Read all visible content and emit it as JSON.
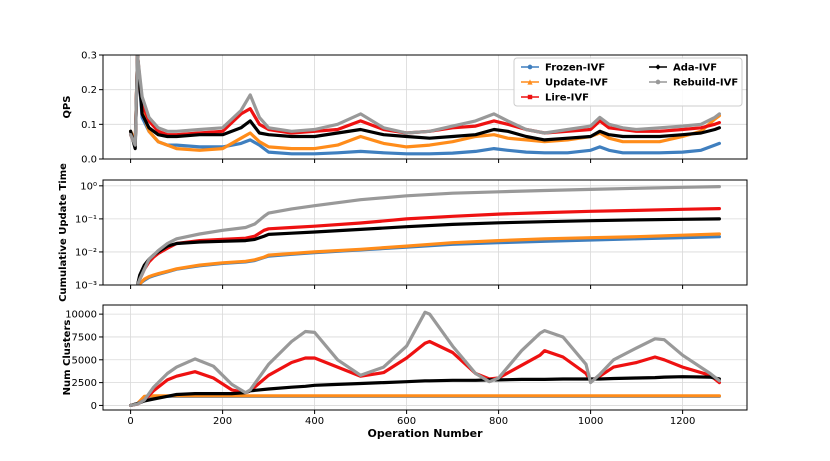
{
  "chart_data": [
    {
      "type": "line",
      "ylabel": "QPS",
      "ylim": [
        0,
        0.3
      ],
      "yticks": [
        0.0,
        0.1,
        0.2,
        0.3
      ],
      "ytick_labels": [
        "0.0",
        "0.1",
        "0.2",
        "0.3"
      ],
      "grid": true,
      "legend_position": "top-right",
      "x": [
        0,
        10,
        15,
        25,
        40,
        60,
        80,
        100,
        150,
        200,
        240,
        260,
        280,
        300,
        350,
        400,
        450,
        500,
        550,
        600,
        650,
        700,
        750,
        790,
        820,
        860,
        900,
        950,
        1000,
        1020,
        1040,
        1070,
        1100,
        1150,
        1200,
        1240,
        1270,
        1280
      ],
      "series": [
        {
          "name": "Frozen-IVF",
          "color": "#3f7fbf",
          "marker": "circle",
          "values": [
            0.08,
            0.04,
            0.3,
            0.12,
            0.08,
            0.05,
            0.04,
            0.04,
            0.035,
            0.035,
            0.045,
            0.055,
            0.04,
            0.02,
            0.015,
            0.015,
            0.018,
            0.022,
            0.018,
            0.015,
            0.015,
            0.017,
            0.022,
            0.03,
            0.025,
            0.02,
            0.018,
            0.018,
            0.025,
            0.035,
            0.025,
            0.018,
            0.018,
            0.018,
            0.02,
            0.025,
            0.04,
            0.045
          ]
        },
        {
          "name": "Update-IVF",
          "color": "#ff8c1a",
          "marker": "triangle",
          "values": [
            0.08,
            0.05,
            0.3,
            0.14,
            0.08,
            0.05,
            0.04,
            0.03,
            0.025,
            0.03,
            0.06,
            0.075,
            0.05,
            0.035,
            0.03,
            0.03,
            0.04,
            0.065,
            0.045,
            0.035,
            0.04,
            0.05,
            0.065,
            0.07,
            0.06,
            0.055,
            0.05,
            0.055,
            0.065,
            0.075,
            0.06,
            0.05,
            0.05,
            0.05,
            0.065,
            0.08,
            0.115,
            0.125
          ]
        },
        {
          "name": "Lire-IVF",
          "color": "#ee1111",
          "marker": "square",
          "values": [
            0.07,
            0.04,
            0.3,
            0.16,
            0.11,
            0.08,
            0.07,
            0.07,
            0.075,
            0.08,
            0.13,
            0.145,
            0.1,
            0.085,
            0.075,
            0.08,
            0.085,
            0.11,
            0.085,
            0.075,
            0.08,
            0.09,
            0.095,
            0.11,
            0.1,
            0.085,
            0.075,
            0.08,
            0.085,
            0.11,
            0.09,
            0.085,
            0.08,
            0.08,
            0.085,
            0.09,
            0.1,
            0.105
          ]
        },
        {
          "name": "Ada-IVF",
          "color": "#000000",
          "marker": "diamond",
          "values": [
            0.08,
            0.03,
            0.3,
            0.13,
            0.09,
            0.07,
            0.065,
            0.065,
            0.07,
            0.07,
            0.09,
            0.11,
            0.075,
            0.07,
            0.065,
            0.065,
            0.075,
            0.085,
            0.07,
            0.065,
            0.06,
            0.065,
            0.07,
            0.085,
            0.08,
            0.065,
            0.055,
            0.06,
            0.065,
            0.08,
            0.07,
            0.065,
            0.065,
            0.065,
            0.07,
            0.075,
            0.085,
            0.09
          ]
        },
        {
          "name": "Rebuild-IVF",
          "color": "#999999",
          "marker": "circle",
          "values": [
            0.07,
            0.04,
            0.3,
            0.18,
            0.12,
            0.09,
            0.08,
            0.08,
            0.085,
            0.09,
            0.14,
            0.185,
            0.12,
            0.09,
            0.08,
            0.085,
            0.1,
            0.13,
            0.09,
            0.075,
            0.08,
            0.095,
            0.11,
            0.13,
            0.11,
            0.085,
            0.075,
            0.085,
            0.095,
            0.12,
            0.1,
            0.09,
            0.085,
            0.09,
            0.095,
            0.1,
            0.12,
            0.13
          ]
        }
      ]
    },
    {
      "type": "line",
      "ylabel": "Cumulative Update Time",
      "yscale": "log",
      "ylim": [
        0.001,
        1.5
      ],
      "yticks": [
        0.001,
        0.01,
        0.1,
        1
      ],
      "ytick_labels": [
        "10⁻³",
        "10⁻²",
        "10⁻¹",
        "10⁰"
      ],
      "grid": true,
      "x": [
        15,
        20,
        30,
        40,
        50,
        60,
        80,
        100,
        150,
        200,
        250,
        270,
        290,
        300,
        350,
        400,
        500,
        600,
        700,
        800,
        900,
        1000,
        1100,
        1200,
        1280
      ],
      "series": [
        {
          "name": "Frozen-IVF",
          "color": "#3f7fbf",
          "values": [
            0.001,
            0.0011,
            0.0014,
            0.0017,
            0.0019,
            0.0021,
            0.0025,
            0.003,
            0.0038,
            0.0045,
            0.005,
            0.0055,
            0.0068,
            0.0075,
            0.0085,
            0.0095,
            0.0115,
            0.014,
            0.017,
            0.019,
            0.021,
            0.023,
            0.025,
            0.027,
            0.029
          ]
        },
        {
          "name": "Update-IVF",
          "color": "#ff8c1a",
          "values": [
            0.001,
            0.0011,
            0.0015,
            0.0018,
            0.002,
            0.0022,
            0.0026,
            0.0031,
            0.004,
            0.0047,
            0.0052,
            0.0058,
            0.007,
            0.008,
            0.009,
            0.01,
            0.012,
            0.015,
            0.019,
            0.022,
            0.025,
            0.027,
            0.029,
            0.032,
            0.035
          ]
        },
        {
          "name": "Lire-IVF",
          "color": "#ee1111",
          "values": [
            0.001,
            0.0015,
            0.003,
            0.005,
            0.007,
            0.009,
            0.013,
            0.018,
            0.022,
            0.024,
            0.026,
            0.03,
            0.045,
            0.05,
            0.055,
            0.06,
            0.075,
            0.1,
            0.12,
            0.14,
            0.155,
            0.17,
            0.18,
            0.195,
            0.205
          ]
        },
        {
          "name": "Ada-IVF",
          "color": "#000000",
          "values": [
            0.001,
            0.002,
            0.004,
            0.006,
            0.008,
            0.01,
            0.015,
            0.018,
            0.02,
            0.021,
            0.022,
            0.024,
            0.03,
            0.034,
            0.037,
            0.04,
            0.048,
            0.058,
            0.068,
            0.076,
            0.082,
            0.088,
            0.093,
            0.097,
            0.1
          ]
        },
        {
          "name": "Rebuild-IVF",
          "color": "#999999",
          "values": [
            0.001,
            0.0015,
            0.003,
            0.006,
            0.008,
            0.011,
            0.018,
            0.025,
            0.035,
            0.045,
            0.055,
            0.07,
            0.12,
            0.15,
            0.2,
            0.25,
            0.38,
            0.5,
            0.6,
            0.66,
            0.72,
            0.78,
            0.84,
            0.9,
            0.95
          ]
        }
      ]
    },
    {
      "type": "line",
      "ylabel": "Num Clusters",
      "xlabel": "Operation Number",
      "ylim": [
        -500,
        11000
      ],
      "yticks": [
        0,
        2500,
        5000,
        7500,
        10000
      ],
      "ytick_labels": [
        "0",
        "2500",
        "5000",
        "7500",
        "10000"
      ],
      "xlim": [
        -60,
        1340
      ],
      "xticks": [
        0,
        200,
        400,
        600,
        800,
        1000,
        1200
      ],
      "xtick_labels": [
        "0",
        "200",
        "400",
        "600",
        "800",
        "1000",
        "1200"
      ],
      "grid": true,
      "x": [
        0,
        15,
        30,
        50,
        80,
        100,
        140,
        180,
        220,
        250,
        260,
        300,
        350,
        380,
        400,
        450,
        500,
        550,
        600,
        640,
        650,
        700,
        750,
        780,
        800,
        850,
        890,
        900,
        940,
        990,
        1000,
        1020,
        1050,
        1100,
        1140,
        1160,
        1200,
        1260,
        1280
      ],
      "series": [
        {
          "name": "Frozen-IVF",
          "color": "#3f7fbf",
          "values": [
            0,
            200,
            900,
            1000,
            1000,
            1000,
            1000,
            1000,
            1000,
            1000,
            1000,
            1000,
            1000,
            1000,
            1000,
            1000,
            1000,
            1000,
            1000,
            1000,
            1000,
            1000,
            1000,
            1000,
            1000,
            1000,
            1000,
            1000,
            1000,
            1000,
            1000,
            1000,
            1000,
            1000,
            1000,
            1000,
            1000,
            1000,
            1000
          ]
        },
        {
          "name": "Update-IVF",
          "color": "#ff8c1a",
          "values": [
            0,
            200,
            1000,
            1050,
            1050,
            1050,
            1050,
            1050,
            1050,
            1050,
            1050,
            1050,
            1050,
            1050,
            1050,
            1050,
            1050,
            1050,
            1050,
            1050,
            1050,
            1050,
            1050,
            1050,
            1050,
            1050,
            1050,
            1050,
            1050,
            1050,
            1050,
            1050,
            1050,
            1050,
            1050,
            1050,
            1050,
            1050,
            1050
          ]
        },
        {
          "name": "Lire-IVF",
          "color": "#ee1111",
          "values": [
            0,
            150,
            600,
            1600,
            2800,
            3200,
            3700,
            3000,
            1700,
            1400,
            1600,
            3300,
            4700,
            5200,
            5200,
            4200,
            3200,
            3600,
            5200,
            6800,
            7000,
            5800,
            3500,
            2900,
            3000,
            4400,
            5500,
            6000,
            5300,
            3500,
            2700,
            3200,
            4200,
            4700,
            5300,
            5000,
            4200,
            3300,
            2500
          ]
        },
        {
          "name": "Ada-IVF",
          "color": "#000000",
          "values": [
            0,
            200,
            500,
            700,
            1000,
            1200,
            1300,
            1300,
            1300,
            1400,
            1600,
            1800,
            2000,
            2100,
            2200,
            2300,
            2400,
            2500,
            2600,
            2700,
            2700,
            2750,
            2750,
            2800,
            2800,
            2850,
            2850,
            2850,
            2900,
            2900,
            2900,
            2900,
            2950,
            3000,
            3050,
            3100,
            3150,
            3100,
            2900
          ]
        },
        {
          "name": "Rebuild-IVF",
          "color": "#999999",
          "values": [
            0,
            150,
            600,
            2000,
            3500,
            4200,
            5100,
            4300,
            2300,
            1400,
            1700,
            4500,
            7000,
            8100,
            8000,
            5000,
            3300,
            4200,
            6500,
            10200,
            10000,
            6500,
            3500,
            2600,
            3000,
            6000,
            7900,
            8200,
            7500,
            4500,
            2500,
            3400,
            5000,
            6300,
            7300,
            7200,
            5500,
            3500,
            2700
          ]
        }
      ]
    }
  ]
}
